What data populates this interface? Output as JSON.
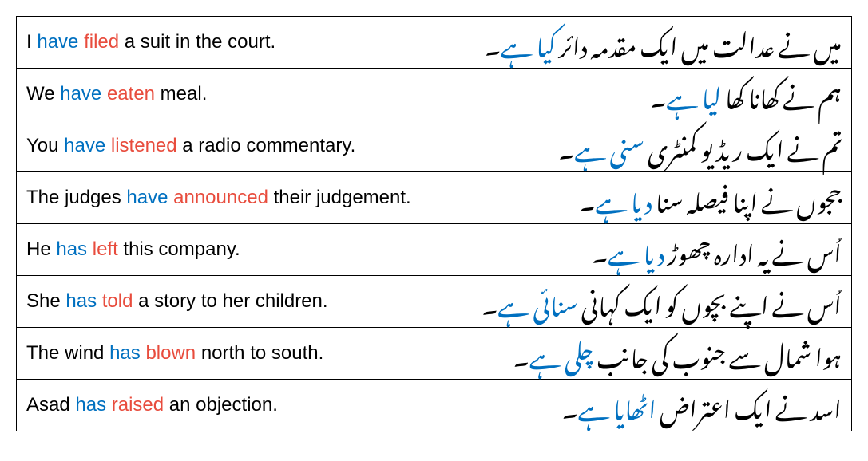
{
  "colors": {
    "black": "#000000",
    "blue": "#0070c0",
    "red": "#e84c3d",
    "border": "#000000",
    "background": "#ffffff"
  },
  "typography": {
    "en_fontsize": 24,
    "ur_fontsize": 30,
    "en_font": "Arial, sans-serif",
    "ur_font": "Jameel Noori Nastaleeq, Noto Nastaliq Urdu, serif"
  },
  "table": {
    "type": "table",
    "columns": [
      "english",
      "urdu"
    ],
    "rows": [
      {
        "en": [
          {
            "t": "I ",
            "c": "black"
          },
          {
            "t": "have ",
            "c": "blue"
          },
          {
            "t": "filed",
            "c": "red"
          },
          {
            "t": " a suit in the court.",
            "c": "black"
          }
        ],
        "ur": [
          {
            "t": "میں نے عدالت میں ایک مقدمہ دائر ",
            "c": "black"
          },
          {
            "t": "کیا ہے",
            "c": "blue"
          },
          {
            "t": "۔",
            "c": "black"
          }
        ]
      },
      {
        "en": [
          {
            "t": "We ",
            "c": "black"
          },
          {
            "t": "have ",
            "c": "blue"
          },
          {
            "t": "eaten",
            "c": "red"
          },
          {
            "t": " meal.",
            "c": "black"
          }
        ],
        "ur": [
          {
            "t": "ہم نے کھانا کھا ",
            "c": "black"
          },
          {
            "t": "لیا ہے",
            "c": "blue"
          },
          {
            "t": "۔",
            "c": "black"
          }
        ]
      },
      {
        "en": [
          {
            "t": "You ",
            "c": "black"
          },
          {
            "t": "have ",
            "c": "blue"
          },
          {
            "t": "listened",
            "c": "red"
          },
          {
            "t": " a radio commentary.",
            "c": "black"
          }
        ],
        "ur": [
          {
            "t": "تم نے ایک ریڈیو کمنٹری ",
            "c": "black"
          },
          {
            "t": "سنی ہے",
            "c": "blue"
          },
          {
            "t": "۔",
            "c": "black"
          }
        ]
      },
      {
        "en": [
          {
            "t": "The judges ",
            "c": "black"
          },
          {
            "t": "have ",
            "c": "blue"
          },
          {
            "t": "announced",
            "c": "red"
          },
          {
            "t": " their judgement.",
            "c": "black"
          }
        ],
        "ur": [
          {
            "t": "ججوں نے اپنا فیصلہ سنا ",
            "c": "black"
          },
          {
            "t": "دیا ہے",
            "c": "blue"
          },
          {
            "t": "۔",
            "c": "black"
          }
        ]
      },
      {
        "en": [
          {
            "t": "He ",
            "c": "black"
          },
          {
            "t": "has ",
            "c": "blue"
          },
          {
            "t": "left",
            "c": "red"
          },
          {
            "t": " this company.",
            "c": "black"
          }
        ],
        "ur": [
          {
            "t": "اُس نے یہ ادارہ چھوڑ ",
            "c": "black"
          },
          {
            "t": "دیا ہے",
            "c": "blue"
          },
          {
            "t": "۔",
            "c": "black"
          }
        ]
      },
      {
        "en": [
          {
            "t": "She ",
            "c": "black"
          },
          {
            "t": "has ",
            "c": "blue"
          },
          {
            "t": "told",
            "c": "red"
          },
          {
            "t": " a story to her children.",
            "c": "black"
          }
        ],
        "ur": [
          {
            "t": "اُس نے اپنے بچوں کو ایک کہانی ",
            "c": "black"
          },
          {
            "t": "سنائی ہے",
            "c": "blue"
          },
          {
            "t": "۔",
            "c": "black"
          }
        ]
      },
      {
        "en": [
          {
            "t": "The wind ",
            "c": "black"
          },
          {
            "t": "has ",
            "c": "blue"
          },
          {
            "t": "blown",
            "c": "red"
          },
          {
            "t": " north to south.",
            "c": "black"
          }
        ],
        "ur": [
          {
            "t": "ہوا شمال سے جنوب کی جانب ",
            "c": "black"
          },
          {
            "t": "چلی ہے",
            "c": "blue"
          },
          {
            "t": "۔",
            "c": "black"
          }
        ]
      },
      {
        "en": [
          {
            "t": "Asad ",
            "c": "black"
          },
          {
            "t": "has ",
            "c": "blue"
          },
          {
            "t": "raised",
            "c": "red"
          },
          {
            "t": " an objection.",
            "c": "black"
          }
        ],
        "ur": [
          {
            "t": "اسد نے ایک اعتراض ",
            "c": "black"
          },
          {
            "t": "اٹھایا ہے",
            "c": "blue"
          },
          {
            "t": "۔",
            "c": "black"
          }
        ]
      }
    ]
  }
}
